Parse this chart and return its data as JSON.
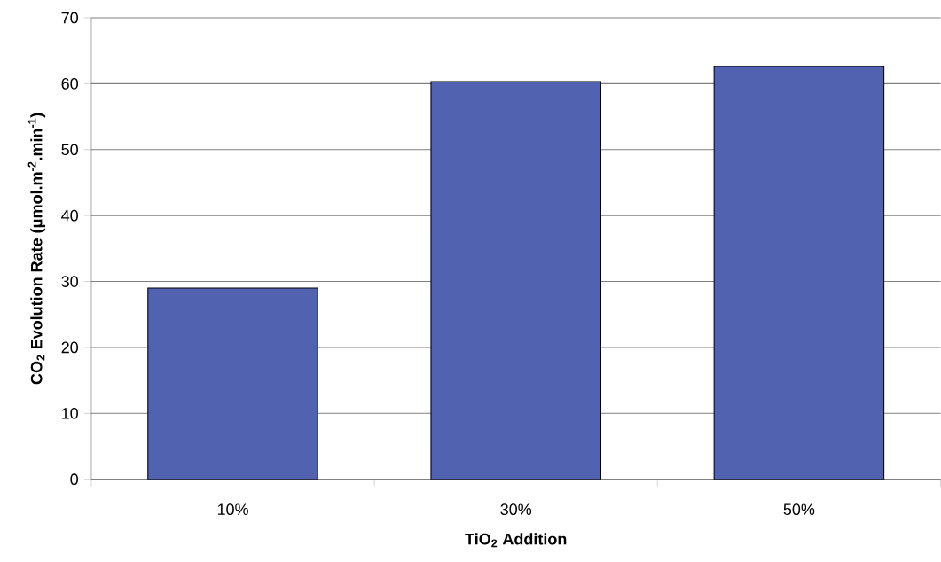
{
  "chart_data": {
    "type": "bar",
    "categories": [
      "10%",
      "30%",
      "50%"
    ],
    "values": [
      29.0,
      60.3,
      62.6
    ],
    "color": "#5062b0",
    "xlabel": "TiO$_{2}$ Addition",
    "ylabel": "CO$_{2}$ Evolution Rate (μmol.m$^{-2}$.min$^{-1}$)",
    "ylim": [
      0,
      70
    ],
    "yticks": [
      0,
      10,
      20,
      30,
      40,
      50,
      60,
      70
    ],
    "grid": "y"
  }
}
